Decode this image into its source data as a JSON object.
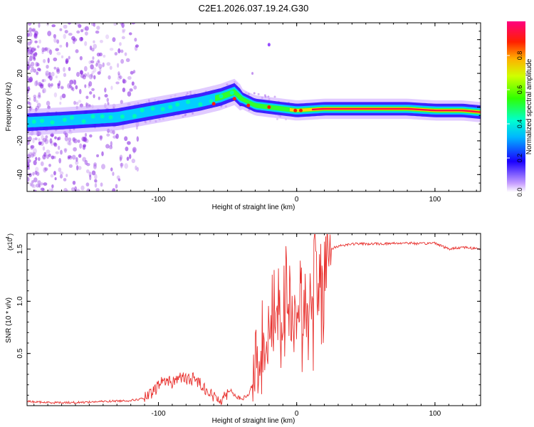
{
  "title": "C2E1.2026.037.19.24.G30",
  "colors": {
    "snr_line": "#e8312e",
    "ridge_core": "#ff1040",
    "speckle": "#8a2be2"
  },
  "chart_data": [
    {
      "type": "heatmap",
      "name": "spectrogram",
      "xlabel": "Height of straight line (km)",
      "ylabel": "Frequency (Hz)",
      "xlim": [
        -195,
        133
      ],
      "ylim": [
        -50,
        50
      ],
      "x_ticks": [
        -100,
        0,
        100
      ],
      "x_tick_labels": [
        "-100",
        "0",
        "100"
      ],
      "y_ticks": [
        -40,
        -20,
        0,
        20,
        40
      ],
      "y_tick_labels": [
        "-40",
        "-20",
        "0",
        "20",
        "40"
      ],
      "ridge": {
        "x": [
          -195,
          -170,
          -150,
          -130,
          -110,
          -90,
          -70,
          -55,
          -45,
          -40,
          -35,
          -30,
          -20,
          -10,
          0,
          20,
          50,
          80,
          100,
          120,
          133
        ],
        "frequency": [
          -9,
          -8,
          -7,
          -6,
          -3,
          0,
          3,
          6,
          9,
          5,
          3,
          1,
          0,
          -1,
          -2,
          -1,
          -1,
          -1,
          -2,
          -2,
          -3
        ]
      },
      "colorbar": {
        "label": "Normalized spectral amplitude",
        "range": [
          0,
          1
        ],
        "ticks": [
          0.0,
          0.2,
          0.4,
          0.6,
          0.8
        ],
        "tick_labels": [
          "0.0",
          "0.2",
          "0.4",
          "0.6",
          "0.8"
        ]
      }
    },
    {
      "type": "line",
      "name": "snr",
      "xlabel": "Height of straight line (km)",
      "ylabel": "SNR (10 * v/v)",
      "scale_label": "(x10",
      "scale_exponent": "4",
      "xlim": [
        -195,
        133
      ],
      "ylim": [
        0,
        1.65
      ],
      "x_ticks": [
        -100,
        0,
        100
      ],
      "x_tick_labels": [
        "-100",
        "0",
        "100"
      ],
      "y_ticks": [
        0.5,
        1.0,
        1.5
      ],
      "y_tick_labels": [
        "0.5",
        "1.0",
        "1.5"
      ],
      "series": [
        {
          "name": "SNR",
          "x": [
            -195,
            -180,
            -160,
            -140,
            -120,
            -110,
            -104,
            -100,
            -95,
            -90,
            -85,
            -80,
            -75,
            -70,
            -65,
            -60,
            -55,
            -50,
            -48,
            -45,
            -40,
            -35,
            -32,
            -30,
            -27,
            -25,
            -22,
            -20,
            -17,
            -15,
            -12,
            -10,
            -8,
            -5,
            -2,
            0,
            3,
            5,
            8,
            10,
            13,
            15,
            18,
            20,
            25,
            30,
            40,
            60,
            80,
            90,
            100,
            110,
            120,
            133
          ],
          "y": [
            0.04,
            0.03,
            0.03,
            0.04,
            0.05,
            0.07,
            0.12,
            0.2,
            0.25,
            0.22,
            0.28,
            0.25,
            0.26,
            0.22,
            0.15,
            0.08,
            0.06,
            0.12,
            0.16,
            0.1,
            0.06,
            0.1,
            0.2,
            0.3,
            0.6,
            0.7,
            0.65,
            0.85,
            0.95,
            1.05,
            0.9,
            0.8,
            1.2,
            0.95,
            0.7,
            0.9,
            1.1,
            0.85,
            1.05,
            1.15,
            1.4,
            1.2,
            1.3,
            1.45,
            1.5,
            1.53,
            1.55,
            1.55,
            1.56,
            1.55,
            1.56,
            1.5,
            1.52,
            1.5
          ]
        }
      ]
    }
  ]
}
